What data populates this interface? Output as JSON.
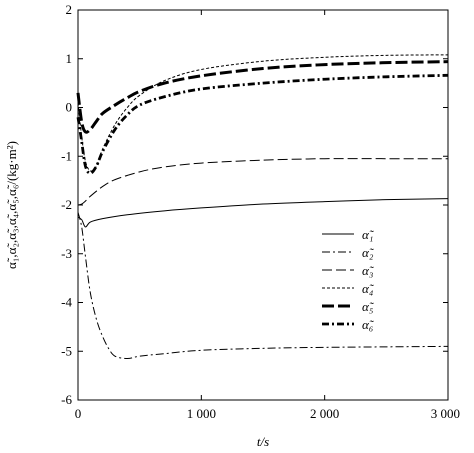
{
  "chart_data": {
    "type": "line",
    "title": "",
    "xlabel": "t/s",
    "ylabel": "α̃₁,α̃₂,α̃₃,α̃₄,α̃₅,α̃₆/(kg·m²)",
    "xlim": [
      0,
      3000
    ],
    "ylim": [
      -6,
      2
    ],
    "x_ticks": [
      0,
      1000,
      2000,
      3000
    ],
    "x_tick_labels": [
      "0",
      "1 000",
      "2 000",
      "3 000"
    ],
    "y_ticks": [
      -6,
      -5,
      -4,
      -3,
      -2,
      -1,
      0,
      1,
      2
    ],
    "y_tick_labels": [
      "-6",
      "-5",
      "-4",
      "-3",
      "-2",
      "-1",
      "0",
      "1",
      "2"
    ],
    "grid": false,
    "legend": "center-right",
    "series": [
      {
        "name": "α̃₁",
        "style": "solid",
        "color": "#000000",
        "x": [
          0,
          30,
          60,
          100,
          200,
          400,
          700,
          1000,
          1500,
          2000,
          2500,
          3000
        ],
        "y": [
          -2.25,
          -2.3,
          -2.45,
          -2.35,
          -2.28,
          -2.2,
          -2.12,
          -2.06,
          -1.98,
          -1.93,
          -1.89,
          -1.87
        ]
      },
      {
        "name": "α̃₂",
        "style": "dashdot-thin",
        "color": "#000000",
        "x": [
          0,
          30,
          60,
          100,
          150,
          200,
          250,
          300,
          400,
          500,
          700,
          1000,
          1500,
          2000,
          2500,
          3000
        ],
        "y": [
          -2.15,
          -2.45,
          -3.05,
          -3.8,
          -4.35,
          -4.7,
          -4.95,
          -5.1,
          -5.15,
          -5.1,
          -5.05,
          -4.98,
          -4.94,
          -4.92,
          -4.91,
          -4.9
        ]
      },
      {
        "name": "α̃₃",
        "style": "longdash",
        "color": "#000000",
        "x": [
          0,
          30,
          60,
          100,
          200,
          300,
          500,
          700,
          1000,
          1500,
          2000,
          2500,
          3000
        ],
        "y": [
          -2.0,
          -1.98,
          -1.92,
          -1.82,
          -1.62,
          -1.48,
          -1.32,
          -1.22,
          -1.14,
          -1.08,
          -1.05,
          -1.05,
          -1.05
        ]
      },
      {
        "name": "α̃₄",
        "style": "shortdash",
        "color": "#000000",
        "x": [
          0,
          30,
          60,
          100,
          150,
          200,
          300,
          400,
          500,
          700,
          1000,
          1500,
          2000,
          2500,
          3000
        ],
        "y": [
          0.1,
          -0.6,
          -1.1,
          -1.3,
          -1.2,
          -0.85,
          -0.35,
          0.0,
          0.25,
          0.55,
          0.78,
          0.95,
          1.03,
          1.07,
          1.08
        ]
      },
      {
        "name": "α̃₅",
        "style": "thick-longdash",
        "color": "#000000",
        "x": [
          0,
          30,
          60,
          100,
          150,
          200,
          300,
          400,
          500,
          700,
          1000,
          1500,
          2000,
          2500,
          3000
        ],
        "y": [
          0.3,
          -0.3,
          -0.5,
          -0.45,
          -0.28,
          -0.12,
          0.05,
          0.2,
          0.33,
          0.5,
          0.65,
          0.8,
          0.88,
          0.92,
          0.94
        ]
      },
      {
        "name": "α̃₆",
        "style": "thick-dashdot",
        "color": "#000000",
        "x": [
          0,
          30,
          60,
          100,
          150,
          200,
          300,
          400,
          500,
          700,
          1000,
          1500,
          2000,
          2500,
          3000
        ],
        "y": [
          -0.2,
          -0.7,
          -1.2,
          -1.35,
          -1.2,
          -0.9,
          -0.45,
          -0.15,
          0.05,
          0.22,
          0.38,
          0.5,
          0.58,
          0.63,
          0.66
        ]
      }
    ]
  }
}
